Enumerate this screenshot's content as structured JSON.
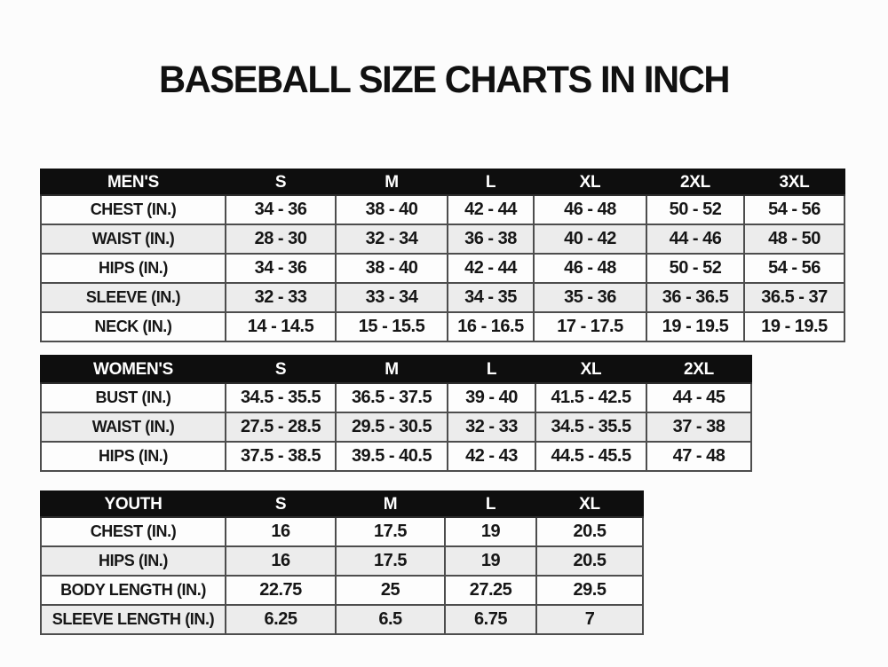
{
  "page": {
    "title": "BASEBALL SIZE CHARTS IN INCH",
    "unit": "inch"
  },
  "colors": {
    "page_background": "#fcfcfc",
    "header_bg": "#0e0e0e",
    "header_text": "#ffffff",
    "row_bg": "#fdfdfd",
    "row_alt_bg": "#ececec",
    "border": "#4d4d4d",
    "text": "#161616"
  },
  "tables": [
    {
      "name": "mens",
      "header": [
        "MEN'S",
        "S",
        "M",
        "L",
        "XL",
        "2XL",
        "3XL"
      ],
      "rows": [
        [
          "CHEST (IN.)",
          "34 - 36",
          "38 - 40",
          "42 - 44",
          "46 - 48",
          "50 - 52",
          "54 - 56"
        ],
        [
          "WAIST (IN.)",
          "28 - 30",
          "32 - 34",
          "36 - 38",
          "40 - 42",
          "44 - 46",
          "48 - 50"
        ],
        [
          "HIPS (IN.)",
          "34 - 36",
          "38 - 40",
          "42 - 44",
          "46 - 48",
          "50 - 52",
          "54 - 56"
        ],
        [
          "SLEEVE (IN.)",
          "32 - 33",
          "33 - 34",
          "34 - 35",
          "35 - 36",
          "36 - 36.5",
          "36.5 - 37"
        ],
        [
          "NECK (IN.)",
          "14 - 14.5",
          "15 - 15.5",
          "16 - 16.5",
          "17 - 17.5",
          "19 - 19.5",
          "19 - 19.5"
        ]
      ]
    },
    {
      "name": "womens",
      "header": [
        "WOMEN'S",
        "S",
        "M",
        "L",
        "XL",
        "2XL"
      ],
      "rows": [
        [
          "BUST (IN.)",
          "34.5 - 35.5",
          "36.5 - 37.5",
          "39 - 40",
          "41.5 - 42.5",
          "44 - 45"
        ],
        [
          "WAIST (IN.)",
          "27.5 - 28.5",
          "29.5 - 30.5",
          "32 - 33",
          "34.5 - 35.5",
          "37 - 38"
        ],
        [
          "HIPS (IN.)",
          "37.5 - 38.5",
          "39.5 - 40.5",
          "42 - 43",
          "44.5 - 45.5",
          "47 - 48"
        ]
      ]
    },
    {
      "name": "youth",
      "header": [
        "YOUTH",
        "S",
        "M",
        "L",
        "XL"
      ],
      "rows": [
        [
          "CHEST (IN.)",
          "16",
          "17.5",
          "19",
          "20.5"
        ],
        [
          "HIPS (IN.)",
          "16",
          "17.5",
          "19",
          "20.5"
        ],
        [
          "BODY LENGTH (IN.)",
          "22.75",
          "25",
          "27.25",
          "29.5"
        ],
        [
          "SLEEVE LENGTH (IN.)",
          "6.25",
          "6.5",
          "6.75",
          "7"
        ]
      ]
    }
  ]
}
